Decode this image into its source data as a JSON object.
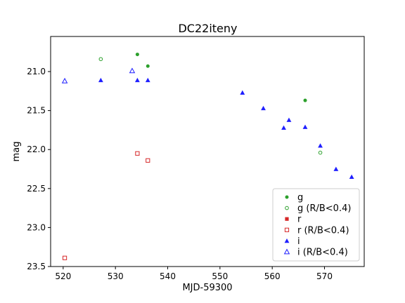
{
  "chart_data": {
    "type": "scatter",
    "title": "DC22iteny",
    "xlabel": "MJD-59300",
    "ylabel": "mag",
    "xlim": [
      517.6,
      577.6
    ],
    "ylim": [
      23.5,
      20.55
    ],
    "y_inverted": true,
    "xticks": [
      "520",
      "530",
      "540",
      "550",
      "560",
      "570"
    ],
    "xtick_values": [
      520,
      530,
      540,
      550,
      560,
      570
    ],
    "yticks": [
      "21.0",
      "21.5",
      "22.0",
      "22.5",
      "23.0",
      "23.5"
    ],
    "ytick_values": [
      21.0,
      21.5,
      22.0,
      22.5,
      23.0,
      23.5
    ],
    "grid": false,
    "legend_position": "lower-right",
    "series": [
      {
        "name": "g",
        "color": "#2ca02c",
        "marker": "circle",
        "filled": true,
        "points": [
          [
            534.2,
            20.78
          ],
          [
            536.2,
            20.93
          ],
          [
            566.3,
            21.37
          ]
        ]
      },
      {
        "name": "g (R/B<0.4)",
        "color": "#2ca02c",
        "marker": "circle",
        "filled": false,
        "points": [
          [
            527.2,
            20.84
          ],
          [
            569.2,
            22.04
          ]
        ]
      },
      {
        "name": "r",
        "color": "#d62728",
        "marker": "square",
        "filled": true,
        "points": []
      },
      {
        "name": "r (R/B<0.4)",
        "color": "#d62728",
        "marker": "square",
        "filled": false,
        "points": [
          [
            520.3,
            23.39
          ],
          [
            534.2,
            22.05
          ],
          [
            536.2,
            22.14
          ]
        ]
      },
      {
        "name": "i",
        "color": "#1f1fff",
        "marker": "triangle",
        "filled": true,
        "points": [
          [
            527.2,
            21.11
          ],
          [
            534.2,
            21.11
          ],
          [
            536.2,
            21.11
          ],
          [
            554.3,
            21.27
          ],
          [
            558.3,
            21.47
          ],
          [
            562.2,
            21.72
          ],
          [
            563.2,
            21.62
          ],
          [
            566.3,
            21.71
          ],
          [
            569.2,
            21.95
          ],
          [
            572.2,
            22.25
          ],
          [
            575.2,
            22.35
          ]
        ]
      },
      {
        "name": "i (R/B<0.4)",
        "color": "#1f1fff",
        "marker": "triangle",
        "filled": false,
        "points": [
          [
            520.3,
            21.12
          ],
          [
            533.2,
            20.99
          ]
        ]
      }
    ]
  }
}
